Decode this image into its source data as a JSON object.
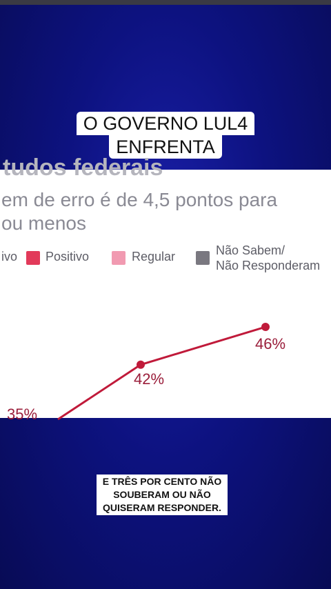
{
  "caption_top": {
    "line1": "O GOVERNO LUL4",
    "line2": "ENFRENTA"
  },
  "panel": {
    "title": "tudos federais",
    "subtitle_line1": "em de erro é de 4,5 pontos para",
    "subtitle_line2": "ou menos"
  },
  "legend": [
    {
      "label": "ivo",
      "color": "#b81d3a"
    },
    {
      "label": "Positivo",
      "color": "#e23a5a"
    },
    {
      "label": "Regular",
      "color": "#f19ab1"
    },
    {
      "label": "Não Sabem/\nNão Responderam",
      "color": "#7a7880"
    }
  ],
  "chart_data": {
    "type": "line",
    "series": [
      {
        "name": "Positivo",
        "color": "#c01a3a",
        "values": [
          35,
          42,
          46
        ],
        "labels": [
          "35%",
          "42%",
          "46%"
        ]
      }
    ]
  },
  "caption_bottom": {
    "text": "E TRÊS POR CENTO NÃO SOUBERAM OU NÃO QUISERAM RESPONDER."
  }
}
